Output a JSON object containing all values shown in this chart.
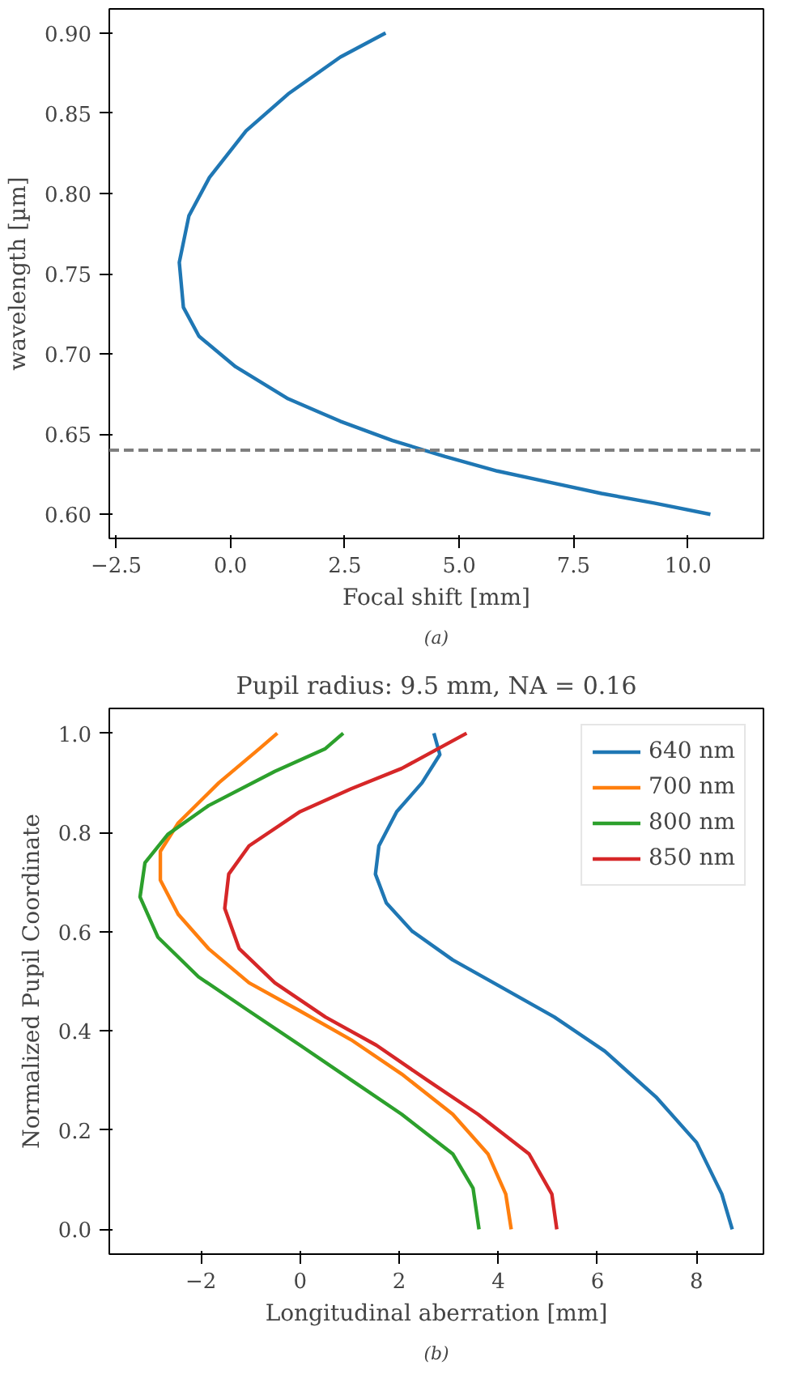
{
  "chart_data": [
    {
      "type": "line",
      "xlabel": "Focal shift [mm]",
      "ylabel": "wavelength [µm]",
      "annotations": [
        "(a)"
      ],
      "xlim": [
        -2.65,
        11.65
      ],
      "ylim": [
        0.585,
        0.915
      ],
      "xticks": [
        {
          "value": -2.5,
          "label": "−2.5"
        },
        {
          "value": 0,
          "label": "0.0"
        },
        {
          "value": 2.5,
          "label": "2.5"
        },
        {
          "value": 5,
          "label": "5.0"
        },
        {
          "value": 7.5,
          "label": "7.5"
        },
        {
          "value": 10,
          "label": "10.0"
        }
      ],
      "yticks": [
        {
          "value": 0.6,
          "label": "0.60"
        },
        {
          "value": 0.65,
          "label": "0.65"
        },
        {
          "value": 0.7,
          "label": "0.70"
        },
        {
          "value": 0.75,
          "label": "0.75"
        },
        {
          "value": 0.8,
          "label": "0.80"
        },
        {
          "value": 0.85,
          "label": "0.85"
        },
        {
          "value": 0.9,
          "label": "0.90"
        }
      ],
      "grid": false,
      "legend": false,
      "line_style": "solid",
      "ref_lines": [
        {
          "axis": "y",
          "value": 0.64,
          "color": "#7f7f7f",
          "line_style": "dashed"
        }
      ],
      "series": [
        {
          "color": "#1f77b4",
          "x": [
            3.39,
            2.4,
            1.26,
            0.34,
            -0.46,
            -0.91,
            -1.12,
            -1.03,
            -0.69,
            0.11,
            1.26,
            2.4,
            3.54,
            4.69,
            5.83,
            6.97,
            8.11,
            9.26,
            10.49
          ],
          "values": [
            0.9,
            0.885,
            0.862,
            0.839,
            0.81,
            0.786,
            0.757,
            0.729,
            0.711,
            0.692,
            0.672,
            0.658,
            0.646,
            0.636,
            0.627,
            0.62,
            0.613,
            0.607,
            0.6
          ]
        }
      ]
    },
    {
      "type": "line",
      "title": "Pupil radius: 9.5 mm, NA = 0.16",
      "xlabel": "Longitudinal aberration [mm]",
      "ylabel": "Normalized Pupil Coordinate",
      "annotations": [
        "(b)"
      ],
      "xlim": [
        -3.85,
        9.35
      ],
      "ylim": [
        -0.05,
        1.05
      ],
      "xticks": [
        {
          "value": -2,
          "label": "−2"
        },
        0,
        2,
        4,
        6,
        8
      ],
      "yticks": [
        {
          "value": 0,
          "label": "0.0"
        },
        {
          "value": 0.2,
          "label": "0.2"
        },
        {
          "value": 0.4,
          "label": "0.4"
        },
        {
          "value": 0.6,
          "label": "0.6"
        },
        {
          "value": 0.8,
          "label": "0.8"
        },
        {
          "value": 1,
          "label": "1.0"
        }
      ],
      "grid": false,
      "legend": "top right",
      "line_style": "solid",
      "series": [
        {
          "name": "640 nm",
          "color": "#1f77b4",
          "x": [
            8.72,
            8.51,
            8.0,
            7.18,
            6.15,
            5.13,
            4.1,
            3.08,
            2.26,
            1.74,
            1.52,
            1.59,
            1.95,
            2.46,
            2.82,
            2.7
          ],
          "values": [
            0,
            0.071,
            0.175,
            0.267,
            0.359,
            0.428,
            0.486,
            0.543,
            0.601,
            0.658,
            0.716,
            0.773,
            0.842,
            0.9,
            0.957,
            1.0
          ]
        },
        {
          "name": "700 nm",
          "color": "#ff7f0e",
          "x": [
            4.26,
            4.15,
            3.79,
            3.08,
            2.05,
            1.03,
            0,
            -1.03,
            -1.85,
            -2.46,
            -2.82,
            -2.82,
            -2.46,
            -1.64,
            -0.82,
            -0.46
          ],
          "values": [
            0,
            0.071,
            0.152,
            0.232,
            0.313,
            0.382,
            0.44,
            0.497,
            0.566,
            0.635,
            0.704,
            0.762,
            0.819,
            0.9,
            0.969,
            1.0
          ]
        },
        {
          "name": "800 nm",
          "color": "#2ca02c",
          "x": [
            3.61,
            3.49,
            3.08,
            2.05,
            1.03,
            0,
            -1.03,
            -2.05,
            -2.87,
            -3.23,
            -3.13,
            -2.67,
            -1.85,
            -0.51,
            0.51,
            0.87
          ],
          "values": [
            0,
            0.083,
            0.152,
            0.232,
            0.301,
            0.371,
            0.44,
            0.509,
            0.589,
            0.67,
            0.739,
            0.796,
            0.854,
            0.923,
            0.969,
            1.0
          ]
        },
        {
          "name": "850 nm",
          "color": "#d62728",
          "x": [
            5.18,
            5.08,
            4.62,
            3.59,
            2.56,
            1.54,
            0.51,
            -0.51,
            -1.23,
            -1.52,
            -1.44,
            -1.03,
            0,
            1.03,
            2.05,
            3.36
          ],
          "values": [
            0,
            0.071,
            0.152,
            0.232,
            0.301,
            0.371,
            0.428,
            0.497,
            0.566,
            0.647,
            0.716,
            0.773,
            0.842,
            0.888,
            0.929,
            1.0
          ]
        }
      ]
    }
  ]
}
